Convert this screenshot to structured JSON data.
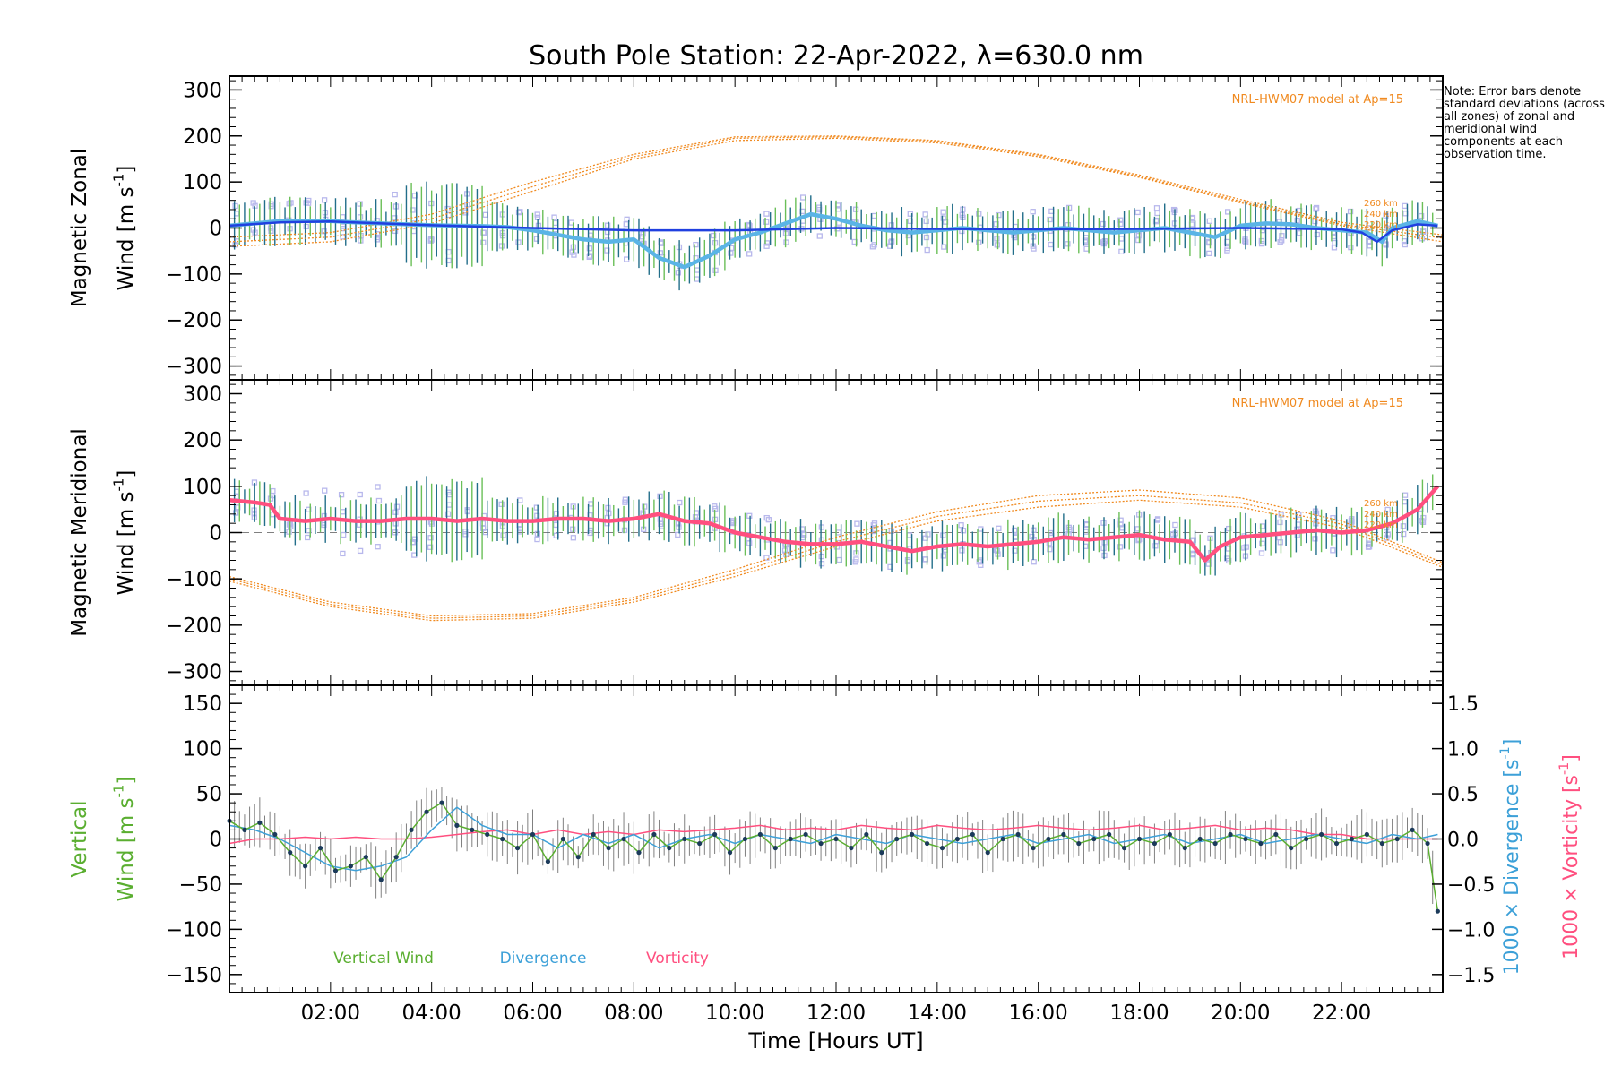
{
  "chart_data": {
    "title": "South Pole Station: 22-Apr-2022, λ=630.0 nm",
    "xlabel": "Time [Hours UT]",
    "xlim": [
      0,
      24
    ],
    "xticks": [
      "02:00",
      "04:00",
      "06:00",
      "08:00",
      "10:00",
      "12:00",
      "14:00",
      "16:00",
      "18:00",
      "20:00",
      "22:00"
    ],
    "xtick_values": [
      2,
      4,
      6,
      8,
      10,
      12,
      14,
      16,
      18,
      20,
      22
    ],
    "note": "Note: Error bars denote standard deviations (across all zones) of zonal and meridional wind components at each observation time.",
    "colors": {
      "zonal_mean": "#5ab4e6",
      "zonal_fit": "#2040e0",
      "meridional_mean": "#ff4f7f",
      "model": "#f08a20",
      "vertical": "#5aae30",
      "divergence": "#3ca0d8",
      "vorticity": "#ff4f7f",
      "scatter": "#b8b8ec",
      "errbar_a": "#226e8a",
      "errbar_b": "#6abf58"
    },
    "panels": [
      {
        "type": "line",
        "name": "zonal",
        "ylabel_line1": "Magnetic Zonal",
        "ylabel_line2": "Wind [m s",
        "ylabel_exp": "-1",
        "ylabel_close": "]",
        "ylim": [
          -330,
          330
        ],
        "yticks": [
          "300",
          "200",
          "100",
          "0",
          "−100",
          "−200",
          "−300"
        ],
        "ytick_values": [
          300,
          200,
          100,
          0,
          -100,
          -200,
          -300
        ],
        "model_label": "NRL-HWM07 model at Ap=15",
        "model_heights": [
          "260 km",
          "240 km",
          "220 km"
        ],
        "model_curves": [
          {
            "x": [
              0,
              2,
              4,
              6,
              8,
              10,
              12,
              14,
              16,
              18,
              20,
              22,
              24
            ],
            "y": [
              -40,
              -30,
              10,
              80,
              150,
              190,
              195,
              185,
              155,
              110,
              55,
              5,
              -30
            ]
          },
          {
            "x": [
              0,
              2,
              4,
              6,
              8,
              10,
              12,
              14,
              16,
              18,
              20,
              22,
              24
            ],
            "y": [
              -30,
              -20,
              20,
              90,
              155,
              195,
              198,
              188,
              158,
              112,
              58,
              8,
              -22
            ]
          },
          {
            "x": [
              0,
              2,
              4,
              6,
              8,
              10,
              12,
              14,
              16,
              18,
              20,
              22,
              24
            ],
            "y": [
              -20,
              -10,
              30,
              100,
              160,
              198,
              200,
              190,
              160,
              115,
              62,
              12,
              -15
            ]
          }
        ],
        "series": [
          {
            "name": "Zonal mean wind",
            "x": [
              0,
              0.5,
              1,
              1.5,
              2,
              2.5,
              3,
              3.5,
              4,
              4.5,
              5,
              5.5,
              6,
              6.5,
              7,
              7.5,
              8,
              8.5,
              9,
              9.5,
              10,
              10.5,
              11,
              11.5,
              12,
              12.5,
              13,
              13.5,
              14,
              14.5,
              15,
              15.5,
              16,
              16.5,
              17,
              17.5,
              18,
              18.5,
              19,
              19.5,
              20,
              20.5,
              21,
              21.5,
              22,
              22.5,
              22.8,
              23,
              23.5,
              23.9
            ],
            "y": [
              5,
              10,
              15,
              15,
              15,
              12,
              10,
              8,
              6,
              5,
              4,
              2,
              -5,
              -15,
              -25,
              -30,
              -25,
              -65,
              -85,
              -60,
              -25,
              -10,
              10,
              30,
              20,
              5,
              -5,
              -10,
              -5,
              0,
              -5,
              -10,
              -5,
              0,
              -5,
              -10,
              -5,
              0,
              -10,
              -20,
              5,
              10,
              8,
              0,
              -5,
              -10,
              -30,
              0,
              15,
              5
            ]
          },
          {
            "name": "Zonal fitted wind",
            "x": [
              0,
              1,
              2,
              3,
              4,
              5,
              6,
              8,
              10,
              12,
              14,
              16,
              18,
              20,
              22,
              22.4,
              22.7,
              23,
              23.5,
              23.9
            ],
            "y": [
              5,
              12,
              14,
              10,
              6,
              3,
              0,
              -5,
              -5,
              0,
              -2,
              -3,
              -2,
              0,
              -3,
              -10,
              -30,
              -5,
              8,
              5
            ]
          }
        ]
      },
      {
        "type": "line",
        "name": "meridional",
        "ylabel_line1": "Magnetic Meridional",
        "ylabel_line2": "Wind [m s",
        "ylabel_exp": "-1",
        "ylabel_close": "]",
        "ylim": [
          -330,
          330
        ],
        "yticks": [
          "300",
          "200",
          "100",
          "0",
          "−100",
          "−200",
          "−300"
        ],
        "ytick_values": [
          300,
          200,
          100,
          0,
          -100,
          -200,
          -300
        ],
        "model_label": "NRL-HWM07 model at Ap=15",
        "model_heights": [
          "260 km",
          "240 km",
          "220 km"
        ],
        "model_curves": [
          {
            "x": [
              0,
              2,
              4,
              6,
              8,
              10,
              12,
              14,
              16,
              18,
              20,
              22,
              24
            ],
            "y": [
              -95,
              -150,
              -180,
              -175,
              -140,
              -80,
              -10,
              45,
              80,
              92,
              75,
              25,
              -65
            ]
          },
          {
            "x": [
              0,
              2,
              4,
              6,
              8,
              10,
              12,
              14,
              16,
              18,
              20,
              22,
              24
            ],
            "y": [
              -100,
              -155,
              -185,
              -180,
              -145,
              -88,
              -20,
              35,
              68,
              80,
              64,
              18,
              -70
            ]
          },
          {
            "x": [
              0,
              2,
              4,
              6,
              8,
              10,
              12,
              14,
              16,
              18,
              20,
              22,
              24
            ],
            "y": [
              -105,
              -160,
              -190,
              -185,
              -150,
              -95,
              -30,
              25,
              55,
              70,
              55,
              10,
              -75
            ]
          }
        ],
        "series": [
          {
            "name": "Meridional mean wind",
            "x": [
              0,
              0.5,
              0.8,
              1,
              1.5,
              2,
              2.5,
              3,
              3.5,
              4,
              4.5,
              5,
              5.5,
              6,
              6.5,
              7,
              7.5,
              8,
              8.5,
              9,
              9.5,
              10,
              10.5,
              11,
              11.5,
              12,
              12.5,
              13,
              13.5,
              14,
              14.5,
              15,
              15.5,
              16,
              16.5,
              17,
              17.5,
              18,
              18.5,
              19,
              19.3,
              19.6,
              20,
              20.5,
              21,
              21.5,
              22,
              22.5,
              23,
              23.5,
              23.9
            ],
            "y": [
              70,
              65,
              60,
              30,
              25,
              30,
              25,
              25,
              30,
              30,
              25,
              30,
              25,
              25,
              30,
              30,
              25,
              30,
              40,
              25,
              20,
              0,
              -10,
              -20,
              -25,
              -25,
              -20,
              -30,
              -40,
              -30,
              -25,
              -30,
              -25,
              -20,
              -10,
              -15,
              -10,
              -5,
              -15,
              -20,
              -60,
              -30,
              -10,
              -5,
              0,
              5,
              0,
              5,
              20,
              50,
              100
            ]
          }
        ]
      },
      {
        "type": "line",
        "name": "vertical",
        "ylabel_line1": "Vertical",
        "ylabel_line2": "Wind [m s",
        "ylabel_exp": "-1",
        "ylabel_close": "]",
        "ylim": [
          -170,
          170
        ],
        "yticks": [
          "150",
          "100",
          "50",
          "0",
          "−50",
          "−100",
          "−150"
        ],
        "ytick_values": [
          150,
          100,
          50,
          0,
          -50,
          -100,
          -150
        ],
        "y2lim": [
          -1.7,
          1.7
        ],
        "y2ticks": [
          "1.5",
          "1.0",
          "0.5",
          "0.0",
          "−0.5",
          "−1.0",
          "−1.5"
        ],
        "y2tick_values": [
          1.5,
          1.0,
          0.5,
          0.0,
          -0.5,
          -1.0,
          -1.5
        ],
        "y2label_div": "1000 × Divergence [s",
        "y2label_vor": "1000 × Vorticity [s",
        "y2label_exp": "-1",
        "y2label_close": "]",
        "legend": [
          "Vertical Wind",
          "Divergence",
          "Vorticity"
        ],
        "series": [
          {
            "name": "Vertical Wind",
            "x": [
              0,
              0.3,
              0.6,
              0.9,
              1.2,
              1.5,
              1.8,
              2.1,
              2.4,
              2.7,
              3,
              3.3,
              3.6,
              3.9,
              4.2,
              4.5,
              4.8,
              5.1,
              5.4,
              5.7,
              6,
              6.3,
              6.6,
              6.9,
              7.2,
              7.5,
              7.8,
              8.1,
              8.4,
              8.7,
              9,
              9.3,
              9.6,
              9.9,
              10.2,
              10.5,
              10.8,
              11.1,
              11.4,
              11.7,
              12,
              12.3,
              12.6,
              12.9,
              13.2,
              13.5,
              13.8,
              14.1,
              14.4,
              14.7,
              15,
              15.3,
              15.6,
              15.9,
              16.2,
              16.5,
              16.8,
              17.1,
              17.4,
              17.7,
              18,
              18.3,
              18.6,
              18.9,
              19.2,
              19.5,
              19.8,
              20.1,
              20.4,
              20.7,
              21,
              21.3,
              21.6,
              21.9,
              22.2,
              22.5,
              22.8,
              23.1,
              23.4,
              23.7,
              23.9
            ],
            "y": [
              20,
              10,
              18,
              5,
              -15,
              -30,
              -10,
              -35,
              -30,
              -20,
              -45,
              -20,
              10,
              30,
              40,
              15,
              10,
              5,
              0,
              -10,
              5,
              -25,
              0,
              -20,
              5,
              -10,
              0,
              -15,
              5,
              -10,
              0,
              -5,
              5,
              -15,
              0,
              5,
              -10,
              0,
              5,
              -5,
              0,
              -10,
              5,
              -15,
              0,
              5,
              -5,
              -10,
              0,
              5,
              -15,
              0,
              5,
              -10,
              0,
              5,
              -5,
              0,
              5,
              -10,
              0,
              -5,
              5,
              -10,
              0,
              -5,
              5,
              0,
              -5,
              5,
              -10,
              0,
              5,
              -5,
              0,
              5,
              -5,
              0,
              10,
              -5,
              -80
            ]
          },
          {
            "name": "Divergence",
            "x": [
              0,
              0.5,
              1,
              1.5,
              2,
              2.5,
              3,
              3.5,
              4,
              4.5,
              5,
              5.5,
              6,
              6.5,
              7,
              7.5,
              8,
              8.5,
              9,
              9.5,
              10,
              10.5,
              11,
              11.5,
              12,
              12.5,
              13,
              13.5,
              14,
              14.5,
              15,
              15.5,
              16,
              16.5,
              17,
              17.5,
              18,
              18.5,
              19,
              19.5,
              20,
              20.5,
              21,
              21.5,
              22,
              22.5,
              23,
              23.5,
              23.9
            ],
            "y": [
              0.15,
              0.1,
              0.0,
              -0.15,
              -0.3,
              -0.35,
              -0.3,
              -0.2,
              0.1,
              0.35,
              0.15,
              0.05,
              0.05,
              -0.1,
              0.05,
              -0.05,
              0.05,
              -0.1,
              0.0,
              0.05,
              -0.05,
              0.05,
              0.0,
              -0.05,
              0.05,
              0.0,
              -0.05,
              0.05,
              0.0,
              -0.05,
              0.0,
              0.05,
              -0.05,
              0.0,
              0.05,
              -0.05,
              0.0,
              0.05,
              -0.05,
              0.0,
              0.05,
              -0.05,
              0.0,
              0.05,
              0.0,
              -0.05,
              0.05,
              0.0,
              0.05
            ]
          },
          {
            "name": "Vorticity",
            "x": [
              0,
              0.5,
              1,
              1.5,
              2,
              2.5,
              3,
              3.5,
              4,
              4.5,
              5,
              5.5,
              6,
              6.5,
              7,
              7.5,
              8,
              8.5,
              9,
              9.5,
              10,
              10.5,
              11,
              11.5,
              12,
              12.5,
              13,
              13.5,
              14,
              14.5,
              15,
              15.5,
              16,
              16.5,
              17,
              17.5,
              18,
              18.5,
              19,
              19.5,
              20,
              20.5,
              21,
              21.5,
              22,
              22.5,
              23,
              23.5,
              23.9
            ],
            "y": [
              -0.05,
              0.0,
              0.0,
              0.02,
              0.0,
              0.02,
              0.0,
              0.0,
              0.02,
              0.05,
              0.08,
              0.1,
              0.05,
              0.1,
              0.05,
              0.08,
              0.05,
              0.1,
              0.08,
              0.1,
              0.12,
              0.15,
              0.1,
              0.12,
              0.1,
              0.15,
              0.12,
              0.1,
              0.15,
              0.12,
              0.1,
              0.12,
              0.15,
              0.12,
              0.1,
              0.12,
              0.15,
              0.1,
              0.12,
              0.15,
              0.1,
              0.12,
              0.1,
              0.05,
              0.05,
              0.0,
              0.0,
              0.0,
              0.0
            ]
          }
        ]
      }
    ]
  }
}
